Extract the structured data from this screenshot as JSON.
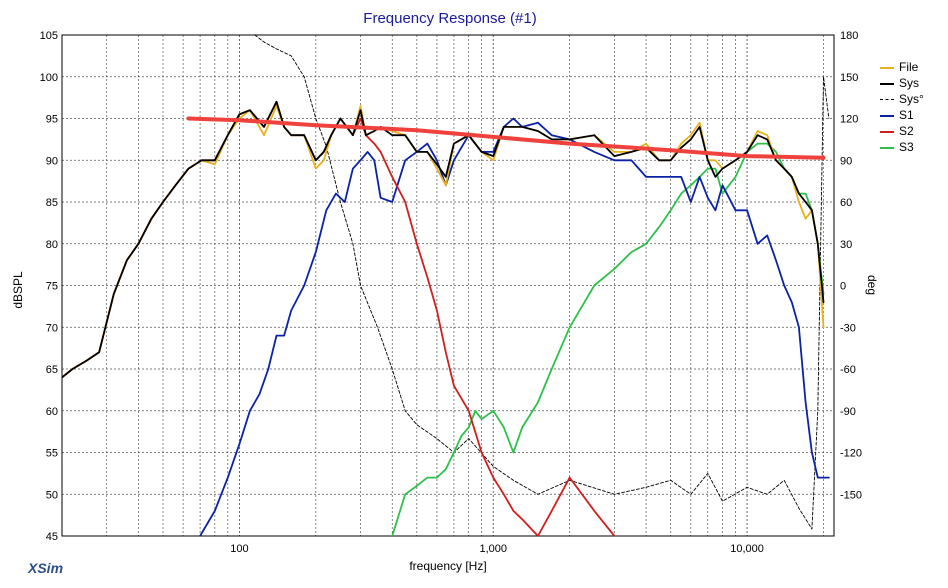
{
  "title": "Frequency Response (#1)",
  "app_brand": "XSim",
  "colors": {
    "File": "#e8b21e",
    "Sys": "#000000",
    "Sys_phase": "#000000",
    "S1": "#0b22a6",
    "S2": "#d21e1e",
    "S3": "#2ec04a",
    "target": "#f0423c",
    "grid": "#555555"
  },
  "chart_data": {
    "type": "line",
    "x_scale": "log",
    "xlabel": "frequency [Hz]",
    "ylabel": "dBSPL",
    "y2label": "deg",
    "xlim": [
      20,
      22000
    ],
    "ylim": [
      45,
      105
    ],
    "y2lim": [
      -180,
      180
    ],
    "x_ticks": [
      100,
      1000,
      10000
    ],
    "x_tick_labels": [
      "100",
      "1,000",
      "10,000"
    ],
    "y_ticks": [
      45,
      50,
      55,
      60,
      65,
      70,
      75,
      80,
      85,
      90,
      95,
      100,
      105
    ],
    "y_tick_labels": [
      "45",
      "50",
      "55",
      "60",
      "65",
      "70",
      "75",
      "80",
      "85",
      "90",
      "95",
      "100",
      "105"
    ],
    "y2_ticks": [
      180,
      150,
      120,
      90,
      60,
      30,
      0,
      -30,
      -60,
      -90,
      -120,
      -150
    ],
    "y2_tick_labels": [
      "180",
      "150",
      "120",
      "90",
      "60",
      "30",
      "0",
      "-30",
      "-60",
      "-90",
      "-120",
      "-150"
    ],
    "grid": true,
    "legend_position": "right",
    "legend": [
      "File",
      "Sys",
      "Sys°",
      "S1",
      "S2",
      "S3"
    ],
    "series": [
      {
        "name": "File",
        "style": "solid",
        "axis": "left",
        "x": [
          20,
          22,
          25,
          28,
          32,
          36,
          40,
          45,
          50,
          56,
          63,
          71,
          80,
          90,
          100,
          110,
          125,
          140,
          150,
          160,
          180,
          200,
          215,
          230,
          250,
          280,
          300,
          315,
          340,
          360,
          400,
          450,
          500,
          550,
          600,
          650,
          700,
          800,
          900,
          1000,
          1100,
          1200,
          1300,
          1500,
          1700,
          2000,
          2500,
          3000,
          3500,
          4000,
          4500,
          5000,
          5500,
          6000,
          6500,
          7000,
          7500,
          8000,
          9000,
          10000,
          11000,
          12000,
          13000,
          14000,
          15000,
          16000,
          17000,
          18000,
          19000,
          20000
        ],
        "y": [
          64,
          65,
          66,
          67,
          74,
          78,
          80,
          83,
          85,
          87,
          89,
          90,
          89.5,
          93,
          95,
          96,
          93,
          96.5,
          94,
          93,
          93,
          89,
          90,
          93,
          95,
          93,
          96.5,
          93,
          93.5,
          94,
          93.5,
          93,
          91,
          91,
          89,
          87,
          92,
          93,
          91,
          90,
          94,
          94,
          94,
          93.5,
          92.5,
          92.5,
          93,
          91,
          91,
          92,
          90,
          90,
          92,
          93,
          94.5,
          90,
          90,
          89,
          90,
          91,
          93.5,
          93,
          90,
          89,
          88,
          85,
          83,
          84,
          80,
          70
        ]
      },
      {
        "name": "Sys",
        "style": "solid",
        "axis": "left",
        "x": [
          20,
          22,
          25,
          28,
          32,
          36,
          40,
          45,
          50,
          56,
          63,
          71,
          80,
          90,
          100,
          110,
          125,
          140,
          150,
          160,
          180,
          200,
          215,
          230,
          250,
          280,
          300,
          315,
          340,
          360,
          400,
          450,
          500,
          550,
          600,
          650,
          700,
          800,
          900,
          1000,
          1100,
          1200,
          1300,
          1500,
          1700,
          2000,
          2500,
          3000,
          3500,
          4000,
          4500,
          5000,
          5500,
          6000,
          6500,
          7000,
          7500,
          8000,
          9000,
          10000,
          11000,
          12000,
          13000,
          14000,
          15000,
          16000,
          17000,
          18000,
          19000,
          20000
        ],
        "y": [
          64,
          65,
          66,
          67,
          74,
          78,
          80,
          83,
          85,
          87,
          89,
          90,
          90,
          93,
          95.5,
          96,
          94,
          97,
          94,
          93,
          93,
          90,
          91,
          93,
          95,
          93,
          96,
          93,
          93.5,
          94,
          93,
          93,
          91,
          91,
          89.5,
          88,
          92,
          93,
          91,
          90.5,
          94,
          94,
          94,
          93.5,
          92.5,
          92.5,
          93,
          90.5,
          91,
          91.5,
          90,
          90,
          91.5,
          92.5,
          94,
          90,
          88,
          89,
          90,
          91,
          93,
          92.5,
          90,
          89,
          88,
          86,
          85,
          84,
          80,
          73
        ]
      },
      {
        "name": "Sys°",
        "style": "dashed",
        "axis": "right",
        "x": [
          115,
          125,
          140,
          160,
          180,
          200,
          220,
          250,
          280,
          300,
          350,
          400,
          450,
          500,
          600,
          700,
          800,
          1000,
          1200,
          1500,
          2000,
          3000,
          4000,
          5000,
          6000,
          7000,
          8000,
          10000,
          12000,
          14000,
          16000,
          18000,
          19000,
          20000,
          21000
        ],
        "y": [
          180,
          175,
          170,
          165,
          150,
          120,
          100,
          60,
          30,
          0,
          -30,
          -60,
          -90,
          -100,
          -110,
          -120,
          -110,
          -130,
          -140,
          -150,
          -140,
          -150,
          -145,
          -140,
          -150,
          -135,
          -155,
          -145,
          -150,
          -140,
          -160,
          -175,
          -90,
          150,
          120
        ]
      },
      {
        "name": "S1",
        "style": "solid",
        "axis": "left",
        "x": [
          70,
          80,
          90,
          100,
          110,
          120,
          130,
          140,
          150,
          160,
          180,
          200,
          220,
          240,
          260,
          280,
          300,
          320,
          340,
          360,
          400,
          450,
          500,
          550,
          600,
          650,
          700,
          800,
          900,
          1000,
          1100,
          1200,
          1300,
          1500,
          1700,
          2000,
          2500,
          3000,
          3500,
          4000,
          4500,
          5000,
          5500,
          6000,
          6500,
          7000,
          7500,
          8000,
          9000,
          10000,
          11000,
          12000,
          13000,
          14000,
          15000,
          16000,
          17000,
          18000,
          19000,
          20000,
          21000
        ],
        "y": [
          45,
          48,
          52,
          56,
          60,
          62,
          65,
          69,
          69,
          72,
          75,
          79,
          84,
          86,
          85,
          89,
          90,
          91,
          90,
          85.5,
          85,
          90,
          91,
          92,
          90,
          87,
          90,
          93,
          91,
          91,
          94,
          95,
          94,
          94.5,
          93,
          92.5,
          91,
          90,
          90,
          88,
          88,
          88,
          88,
          85,
          88,
          85.5,
          84,
          87,
          84,
          84,
          80,
          81,
          78,
          75,
          73,
          70,
          61,
          55,
          52,
          52,
          52
        ]
      },
      {
        "name": "S2",
        "style": "solid",
        "axis": "left",
        "x": [
          20,
          22,
          25,
          28,
          32,
          36,
          40,
          45,
          50,
          56,
          63,
          71,
          80,
          90,
          100,
          110,
          125,
          140,
          150,
          160,
          180,
          200,
          215,
          230,
          250,
          280,
          300,
          315,
          340,
          360,
          400,
          450,
          500,
          550,
          600,
          650,
          700,
          800,
          900,
          1000,
          1100,
          1200,
          1300,
          1500,
          1700,
          2000,
          2500,
          3000
        ],
        "y": [
          64,
          65,
          66,
          67,
          74,
          78,
          80,
          83,
          85,
          87,
          89,
          90,
          90,
          93,
          95.5,
          96,
          94,
          97,
          94,
          93,
          93,
          90,
          91,
          93,
          95,
          93,
          95,
          93,
          92,
          91,
          88,
          85,
          80,
          76,
          72,
          67,
          63,
          60,
          55,
          52,
          50,
          48,
          47,
          45,
          48,
          52,
          48,
          45
        ]
      },
      {
        "name": "S3",
        "style": "solid",
        "axis": "left",
        "x": [
          400,
          450,
          500,
          550,
          600,
          650,
          700,
          750,
          800,
          850,
          900,
          1000,
          1100,
          1200,
          1300,
          1500,
          1700,
          2000,
          2500,
          3000,
          3500,
          4000,
          4500,
          5000,
          5500,
          6000,
          6500,
          7000,
          7500,
          8000,
          9000,
          10000,
          11000,
          12000,
          13000,
          14000,
          15000,
          16000,
          17000,
          18000,
          19000,
          20000
        ],
        "y": [
          45,
          50,
          51,
          52,
          52,
          53,
          55,
          57,
          58,
          60,
          59,
          60,
          58,
          55,
          58,
          61,
          65,
          70,
          75,
          77,
          79,
          80,
          82,
          84,
          86,
          87,
          88,
          89,
          89,
          86,
          88,
          91,
          92,
          92,
          91,
          89,
          88,
          86,
          86,
          84,
          80,
          74
        ]
      },
      {
        "name": "",
        "style": "solid",
        "axis": "left",
        "role": "target",
        "x": [
          63,
          100,
          200,
          500,
          1000,
          2000,
          5000,
          10000,
          20000
        ],
        "y": [
          95,
          94.8,
          94.2,
          93.6,
          92.8,
          92,
          91.2,
          90.5,
          90.3
        ]
      }
    ]
  }
}
